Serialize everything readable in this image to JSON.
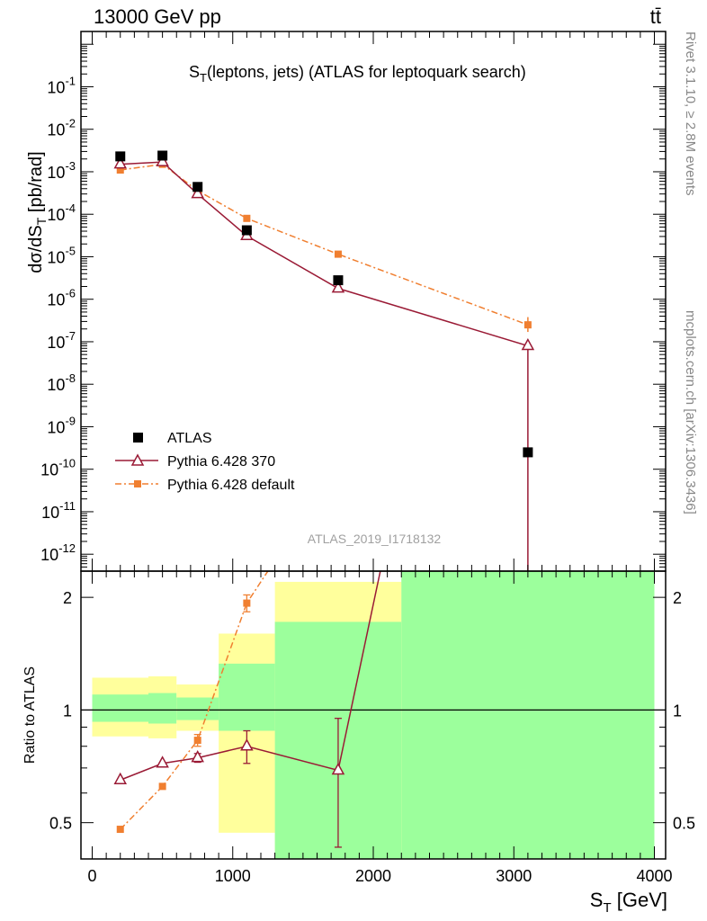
{
  "header": {
    "energy_label": "13000 GeV pp",
    "process_label": "tt̄",
    "plot_title_main": "S",
    "plot_title_sub": "T",
    "plot_title_rest": "(leptons, jets) (ATLAS for leptoquark search)",
    "analysis_id": "ATLAS_2019_I1718132"
  },
  "side_labels": {
    "rivet": "Rivet 3.1.10, ≥ 2.8M events",
    "mcplots": "mcplots.cern.ch [arXiv:1306.3436]"
  },
  "axes": {
    "ylabel_main_a": "dσ/dS",
    "ylabel_main_sub": "T",
    "ylabel_main_b": " [pb/rad]",
    "ylabel_ratio": "Ratio to ATLAS",
    "xlabel_a": "S",
    "xlabel_sub": "T",
    "xlabel_b": " [GeV]"
  },
  "legend": {
    "atlas": "ATLAS",
    "py370": "Pythia 6.428 370",
    "pydef": "Pythia 6.428 default"
  },
  "colors": {
    "atlas": "#000000",
    "py370": "#9a1a35",
    "pydef": "#f07f30",
    "band_green": "#9cff9c",
    "band_yellow": "#ffff9c"
  },
  "chart_data": {
    "type": "line",
    "x_range": [
      -80,
      4080
    ],
    "main": {
      "yscale": "log",
      "ylim": [
        4e-13,
        2
      ],
      "y_tick_labels": [
        "10^-12",
        "10^-11",
        "10^-10",
        "10^-9",
        "10^-8",
        "10^-7",
        "10^-6",
        "10^-5",
        "10^-4",
        "10^-3",
        "10^-2",
        "10^-1"
      ],
      "series": [
        {
          "name": "ATLAS",
          "x": [
            200,
            500,
            750,
            1100,
            1750,
            3100
          ],
          "y": [
            0.0023,
            0.0024,
            0.00044,
            4.2e-05,
            2.8e-06,
            2.5e-10
          ]
        },
        {
          "name": "Pythia 6.428 370",
          "x": [
            200,
            500,
            750,
            1100,
            1750,
            3100
          ],
          "y": [
            0.0015,
            0.0017,
            0.0003,
            3.1e-05,
            1.8e-06,
            8e-08
          ]
        },
        {
          "name": "Pythia 6.428 default",
          "x": [
            200,
            500,
            750,
            1100,
            1750,
            3100
          ],
          "y": [
            0.0011,
            0.0015,
            0.00036,
            8e-05,
            1.15e-05,
            2.5e-07
          ]
        }
      ]
    },
    "ratio": {
      "yscale": "log",
      "ylim": [
        0.4,
        2.35
      ],
      "y_tick_labels": [
        "0.5",
        "1",
        "2"
      ],
      "x_tick_labels": [
        "0",
        "1000",
        "2000",
        "3000",
        "4000"
      ],
      "bands": [
        {
          "x0": 0,
          "x1": 400,
          "green": [
            0.93,
            1.1
          ],
          "yellow": [
            0.85,
            1.22
          ]
        },
        {
          "x0": 400,
          "x1": 600,
          "green": [
            0.92,
            1.11
          ],
          "yellow": [
            0.84,
            1.23
          ]
        },
        {
          "x0": 600,
          "x1": 900,
          "green": [
            0.94,
            1.08
          ],
          "yellow": [
            0.88,
            1.17
          ]
        },
        {
          "x0": 900,
          "x1": 1300,
          "green": [
            0.88,
            1.33
          ],
          "yellow": [
            0.47,
            1.6
          ]
        },
        {
          "x0": 1300,
          "x1": 2200,
          "green": [
            0.4,
            1.72
          ],
          "yellow": [
            0.4,
            2.2
          ]
        },
        {
          "x0": 2200,
          "x1": 4000,
          "green": [
            0.4,
            2.35
          ],
          "yellow": [
            0.4,
            2.35
          ]
        }
      ],
      "series": [
        {
          "name": "Pythia 6.428 370",
          "x": [
            200,
            500,
            750,
            1100,
            1750,
            2050
          ],
          "y": [
            0.65,
            0.72,
            0.745,
            0.8,
            0.69,
            2.35
          ],
          "err": [
            0,
            0,
            0.02,
            0.08,
            0.26,
            0
          ]
        },
        {
          "name": "Pythia 6.428 default",
          "x": [
            200,
            500,
            750,
            1100,
            1250
          ],
          "y": [
            0.48,
            0.625,
            0.83,
            1.93,
            2.35
          ],
          "err": [
            0,
            0,
            0.03,
            0.1,
            0
          ]
        }
      ]
    }
  }
}
